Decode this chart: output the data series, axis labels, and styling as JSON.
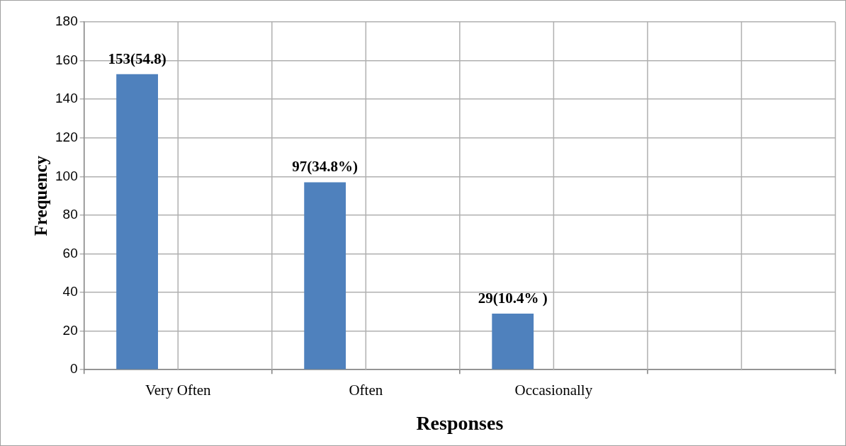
{
  "chart_data": {
    "type": "bar",
    "xlabel": "Responses",
    "ylabel": "Frequency",
    "categories": [
      "Very Often",
      "Often",
      "Occasionally",
      null
    ],
    "values": [
      153,
      97,
      29,
      null
    ],
    "color": "#4f81bd",
    "value_labels": [
      "153(54.8)",
      "97(34.8%)",
      "29(10.4% )",
      null
    ],
    "ylim": [
      0,
      180
    ],
    "yticks": [
      0,
      20,
      40,
      60,
      80,
      100,
      120,
      140,
      160,
      180
    ],
    "grid": true,
    "legend": false
  }
}
